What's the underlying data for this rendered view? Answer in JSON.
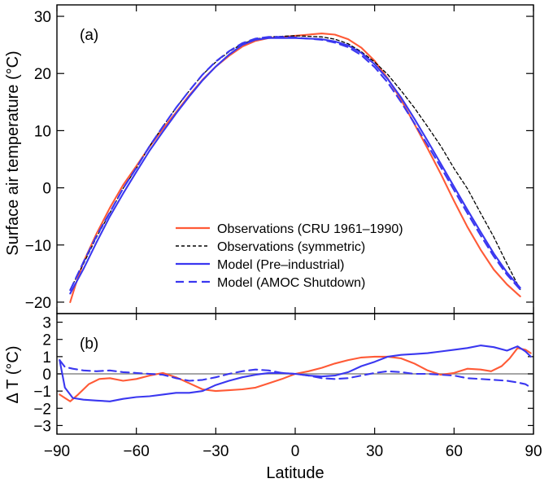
{
  "chart_data": [
    {
      "type": "line",
      "panel_label": "(a)",
      "ylabel": "Surface air temperature  (°C)",
      "xlim": [
        -90,
        90
      ],
      "ylim": [
        -22,
        32
      ],
      "yticks": [
        -20,
        -10,
        0,
        10,
        20,
        30
      ],
      "legend_position": "lower-center",
      "series": [
        {
          "name": "Observations (CRU 1961–1990)",
          "color": "#ff5a36",
          "dash": "solid",
          "x": [
            -85,
            -83,
            -80,
            -75,
            -70,
            -65,
            -60,
            -55,
            -50,
            -45,
            -40,
            -35,
            -30,
            -25,
            -20,
            -15,
            -10,
            -5,
            0,
            5,
            10,
            15,
            20,
            25,
            30,
            35,
            40,
            45,
            50,
            55,
            60,
            65,
            70,
            75,
            80,
            85
          ],
          "y": [
            -20,
            -17,
            -13,
            -8,
            -3.5,
            0.5,
            3.8,
            7.2,
            10.3,
            13.2,
            16.2,
            18.9,
            21.2,
            23.1,
            24.7,
            25.7,
            26.2,
            26.4,
            26.6,
            26.8,
            27.0,
            26.8,
            26.0,
            24.5,
            22.2,
            19.1,
            15.4,
            11.2,
            6.9,
            2.4,
            -2.3,
            -6.8,
            -10.8,
            -14.3,
            -16.9,
            -19.0
          ]
        },
        {
          "name": "Observations (symmetric)",
          "color": "#000000",
          "dash": "short",
          "x": [
            -85,
            -80,
            -75,
            -70,
            -65,
            -60,
            -55,
            -50,
            -45,
            -40,
            -35,
            -30,
            -25,
            -20,
            -15,
            -10,
            -5,
            0,
            5,
            10,
            15,
            20,
            25,
            30,
            35,
            40,
            45,
            50,
            55,
            60,
            65,
            70,
            75,
            80,
            85
          ],
          "y": [
            -17.8,
            -13.3,
            -8.6,
            -4.4,
            -0.1,
            3.4,
            7.3,
            10.7,
            14.0,
            17.0,
            19.8,
            22.0,
            23.8,
            25.2,
            26.0,
            26.4,
            26.5,
            26.6,
            26.5,
            26.4,
            26.0,
            25.2,
            23.8,
            22.0,
            19.8,
            17.0,
            14.0,
            10.7,
            7.3,
            3.4,
            -0.1,
            -4.4,
            -8.6,
            -13.3,
            -17.8
          ]
        },
        {
          "name": "Model (Pre–industrial)",
          "color": "#3a37f0",
          "dash": "solid",
          "x": [
            -85,
            -80,
            -75,
            -70,
            -65,
            -60,
            -55,
            -50,
            -45,
            -40,
            -35,
            -30,
            -25,
            -20,
            -15,
            -10,
            -5,
            0,
            5,
            10,
            15,
            20,
            25,
            30,
            35,
            40,
            45,
            50,
            55,
            60,
            65,
            70,
            75,
            80,
            85
          ],
          "y": [
            -18.5,
            -14.2,
            -9.5,
            -5.0,
            -1.0,
            2.8,
            6.5,
            9.8,
            13.0,
            16.0,
            18.8,
            21.2,
            23.3,
            25.0,
            25.9,
            26.2,
            26.2,
            26.2,
            26.1,
            26.0,
            25.6,
            24.9,
            23.6,
            21.6,
            19.0,
            15.8,
            12.1,
            8.2,
            4.2,
            0.2,
            -3.8,
            -7.7,
            -11.5,
            -14.8,
            -17.5
          ]
        },
        {
          "name": "Model (AMOC Shutdown)",
          "color": "#3a37f0",
          "dash": "long",
          "x": [
            -85,
            -80,
            -75,
            -70,
            -65,
            -60,
            -55,
            -50,
            -45,
            -40,
            -35,
            -30,
            -25,
            -20,
            -15,
            -10,
            -5,
            0,
            5,
            10,
            15,
            20,
            25,
            30,
            35,
            40,
            45,
            50,
            55,
            60,
            65,
            70,
            75,
            80,
            85
          ],
          "y": [
            -17.9,
            -13.0,
            -8.4,
            -4.3,
            -0.1,
            3.5,
            7.3,
            10.7,
            14.0,
            17.0,
            19.8,
            22.1,
            23.9,
            25.3,
            26.1,
            26.4,
            26.4,
            26.3,
            26.1,
            25.9,
            25.4,
            24.6,
            23.2,
            21.1,
            18.4,
            15.0,
            11.3,
            7.5,
            3.6,
            -0.4,
            -4.4,
            -8.3,
            -12.0,
            -15.2,
            -17.8
          ]
        }
      ]
    },
    {
      "type": "line",
      "panel_label": "(b)",
      "xlabel": "Latitude",
      "ylabel": "Δ T  (°C)",
      "xlim": [
        -90,
        90
      ],
      "ylim": [
        -3.5,
        3.5
      ],
      "xticks": [
        -90,
        -60,
        -30,
        0,
        30,
        60,
        90
      ],
      "xticklabels": [
        "−90",
        "−60",
        "−30",
        "0",
        "30",
        "60",
        "90"
      ],
      "yticks": [
        -3,
        -2,
        -1,
        0,
        1,
        2,
        3
      ],
      "yticklabels": [
        "−3",
        "−2",
        "−1",
        "0",
        "1",
        "2",
        "3"
      ],
      "zero_line": true,
      "series": [
        {
          "name": "Observations (CRU 1961–1990)",
          "color": "#ff5a36",
          "dash": "solid",
          "x": [
            -89,
            -87,
            -85,
            -82,
            -78,
            -74,
            -70,
            -65,
            -60,
            -55,
            -50,
            -45,
            -40,
            -35,
            -30,
            -25,
            -20,
            -15,
            -10,
            -5,
            0,
            5,
            10,
            15,
            20,
            25,
            30,
            35,
            40,
            45,
            50,
            55,
            60,
            65,
            70,
            74,
            78,
            81,
            84,
            87,
            89
          ],
          "y": [
            -1.2,
            -1.4,
            -1.6,
            -1.2,
            -0.6,
            -0.3,
            -0.25,
            -0.4,
            -0.3,
            -0.1,
            0.05,
            -0.2,
            -0.55,
            -0.9,
            -1.0,
            -0.95,
            -0.9,
            -0.8,
            -0.55,
            -0.3,
            0.0,
            0.15,
            0.35,
            0.6,
            0.8,
            0.95,
            1.0,
            1.0,
            0.9,
            0.6,
            0.2,
            -0.05,
            0.05,
            0.3,
            0.25,
            0.15,
            0.45,
            0.9,
            1.5,
            1.4,
            1.2
          ]
        },
        {
          "name": "Model (Pre–industrial)",
          "color": "#3a37f0",
          "dash": "solid",
          "x": [
            -89,
            -87,
            -84,
            -80,
            -75,
            -70,
            -65,
            -60,
            -55,
            -50,
            -45,
            -40,
            -35,
            -30,
            -25,
            -20,
            -15,
            -10,
            -5,
            0,
            5,
            10,
            15,
            20,
            25,
            30,
            35,
            40,
            45,
            50,
            55,
            60,
            65,
            70,
            75,
            80,
            84,
            87,
            89
          ],
          "y": [
            0.8,
            -0.8,
            -1.4,
            -1.5,
            -1.55,
            -1.6,
            -1.45,
            -1.35,
            -1.3,
            -1.2,
            -1.1,
            -1.1,
            -1.0,
            -0.65,
            -0.4,
            -0.2,
            -0.05,
            0.05,
            0.05,
            0.0,
            -0.1,
            -0.15,
            -0.1,
            0.1,
            0.45,
            0.7,
            1.0,
            1.1,
            1.15,
            1.2,
            1.3,
            1.4,
            1.5,
            1.65,
            1.55,
            1.35,
            1.6,
            1.3,
            1.0
          ]
        },
        {
          "name": "Model (AMOC Shutdown)",
          "color": "#3a37f0",
          "dash": "long",
          "x": [
            -89,
            -87,
            -84,
            -80,
            -75,
            -70,
            -65,
            -60,
            -55,
            -50,
            -45,
            -40,
            -35,
            -30,
            -25,
            -20,
            -15,
            -10,
            -5,
            0,
            5,
            10,
            15,
            20,
            25,
            30,
            35,
            40,
            45,
            50,
            55,
            60,
            65,
            70,
            75,
            80,
            84,
            87,
            89
          ],
          "y": [
            0.8,
            0.4,
            0.3,
            0.2,
            0.15,
            0.2,
            0.1,
            0.05,
            0.0,
            -0.05,
            -0.25,
            -0.4,
            -0.35,
            -0.2,
            0.0,
            0.15,
            0.25,
            0.2,
            0.05,
            0.0,
            -0.1,
            -0.25,
            -0.3,
            -0.25,
            -0.1,
            0.05,
            0.15,
            0.1,
            0.0,
            0.0,
            -0.05,
            -0.1,
            -0.25,
            -0.3,
            -0.35,
            -0.4,
            -0.5,
            -0.6,
            -0.8
          ]
        }
      ]
    }
  ]
}
